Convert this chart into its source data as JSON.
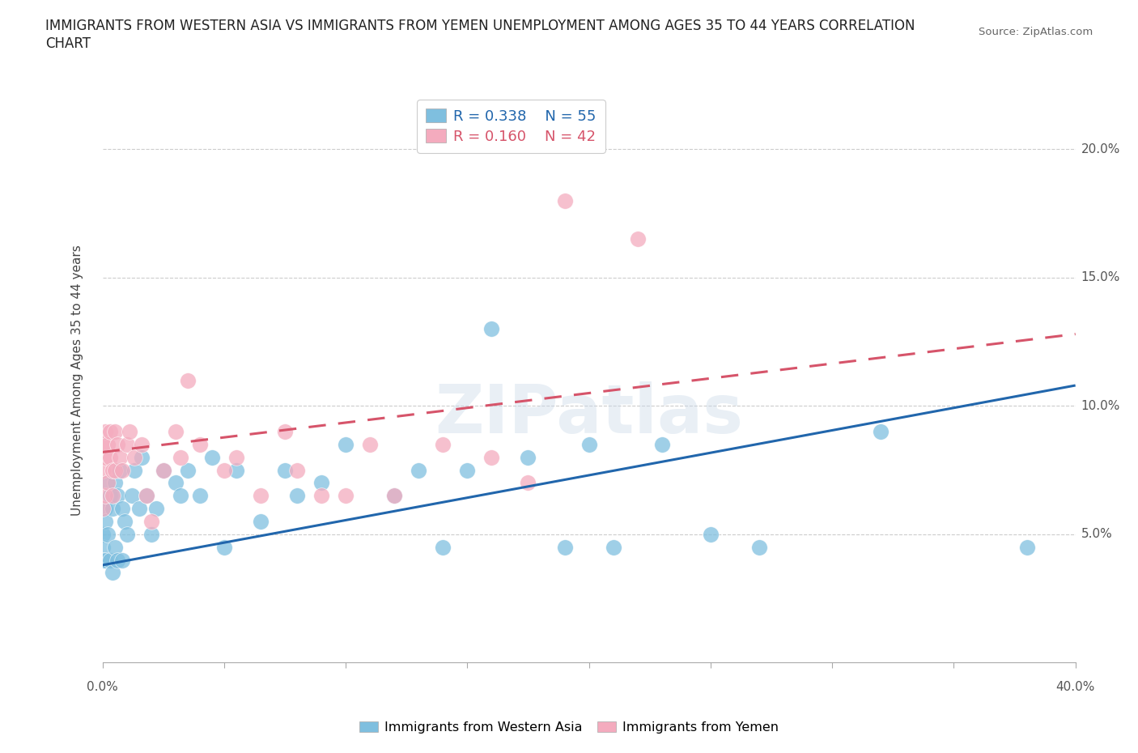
{
  "title_line1": "IMMIGRANTS FROM WESTERN ASIA VS IMMIGRANTS FROM YEMEN UNEMPLOYMENT AMONG AGES 35 TO 44 YEARS CORRELATION",
  "title_line2": "CHART",
  "source": "Source: ZipAtlas.com",
  "ylabel": "Unemployment Among Ages 35 to 44 years",
  "xmin": 0.0,
  "xmax": 0.4,
  "ymin": 0.0,
  "ymax": 0.22,
  "western_asia_R": 0.338,
  "western_asia_N": 55,
  "yemen_R": 0.16,
  "yemen_N": 42,
  "blue_color": "#7fbfdf",
  "pink_color": "#f4abbe",
  "blue_line_color": "#2166ac",
  "pink_line_color": "#d6546a",
  "legend_blue_text_color": "#2166ac",
  "legend_pink_text_color": "#d6546a",
  "watermark": "ZIPatlas",
  "blue_line_y0": 0.038,
  "blue_line_y1": 0.108,
  "pink_line_y0": 0.082,
  "pink_line_y1": 0.128,
  "wa_x": [
    0.0,
    0.0,
    0.0,
    0.001,
    0.001,
    0.001,
    0.002,
    0.002,
    0.003,
    0.003,
    0.004,
    0.004,
    0.005,
    0.005,
    0.006,
    0.006,
    0.007,
    0.008,
    0.008,
    0.009,
    0.01,
    0.012,
    0.013,
    0.015,
    0.016,
    0.018,
    0.02,
    0.022,
    0.025,
    0.03,
    0.032,
    0.035,
    0.04,
    0.045,
    0.05,
    0.055,
    0.065,
    0.075,
    0.08,
    0.09,
    0.1,
    0.12,
    0.13,
    0.14,
    0.15,
    0.16,
    0.175,
    0.19,
    0.2,
    0.21,
    0.23,
    0.25,
    0.27,
    0.32,
    0.38
  ],
  "wa_y": [
    0.05,
    0.045,
    0.04,
    0.06,
    0.055,
    0.04,
    0.07,
    0.05,
    0.065,
    0.04,
    0.06,
    0.035,
    0.07,
    0.045,
    0.065,
    0.04,
    0.075,
    0.06,
    0.04,
    0.055,
    0.05,
    0.065,
    0.075,
    0.06,
    0.08,
    0.065,
    0.05,
    0.06,
    0.075,
    0.07,
    0.065,
    0.075,
    0.065,
    0.08,
    0.045,
    0.075,
    0.055,
    0.075,
    0.065,
    0.07,
    0.085,
    0.065,
    0.075,
    0.045,
    0.075,
    0.13,
    0.08,
    0.045,
    0.085,
    0.045,
    0.085,
    0.05,
    0.045,
    0.09,
    0.045
  ],
  "ye_x": [
    0.0,
    0.0,
    0.0,
    0.001,
    0.001,
    0.001,
    0.002,
    0.002,
    0.003,
    0.003,
    0.004,
    0.004,
    0.005,
    0.005,
    0.006,
    0.007,
    0.008,
    0.01,
    0.011,
    0.013,
    0.016,
    0.018,
    0.02,
    0.025,
    0.03,
    0.032,
    0.035,
    0.04,
    0.05,
    0.055,
    0.065,
    0.075,
    0.08,
    0.09,
    0.1,
    0.11,
    0.12,
    0.14,
    0.16,
    0.175,
    0.19,
    0.22
  ],
  "ye_y": [
    0.085,
    0.075,
    0.06,
    0.09,
    0.08,
    0.065,
    0.085,
    0.07,
    0.09,
    0.08,
    0.075,
    0.065,
    0.09,
    0.075,
    0.085,
    0.08,
    0.075,
    0.085,
    0.09,
    0.08,
    0.085,
    0.065,
    0.055,
    0.075,
    0.09,
    0.08,
    0.11,
    0.085,
    0.075,
    0.08,
    0.065,
    0.09,
    0.075,
    0.065,
    0.065,
    0.085,
    0.065,
    0.085,
    0.08,
    0.07,
    0.18,
    0.165
  ]
}
